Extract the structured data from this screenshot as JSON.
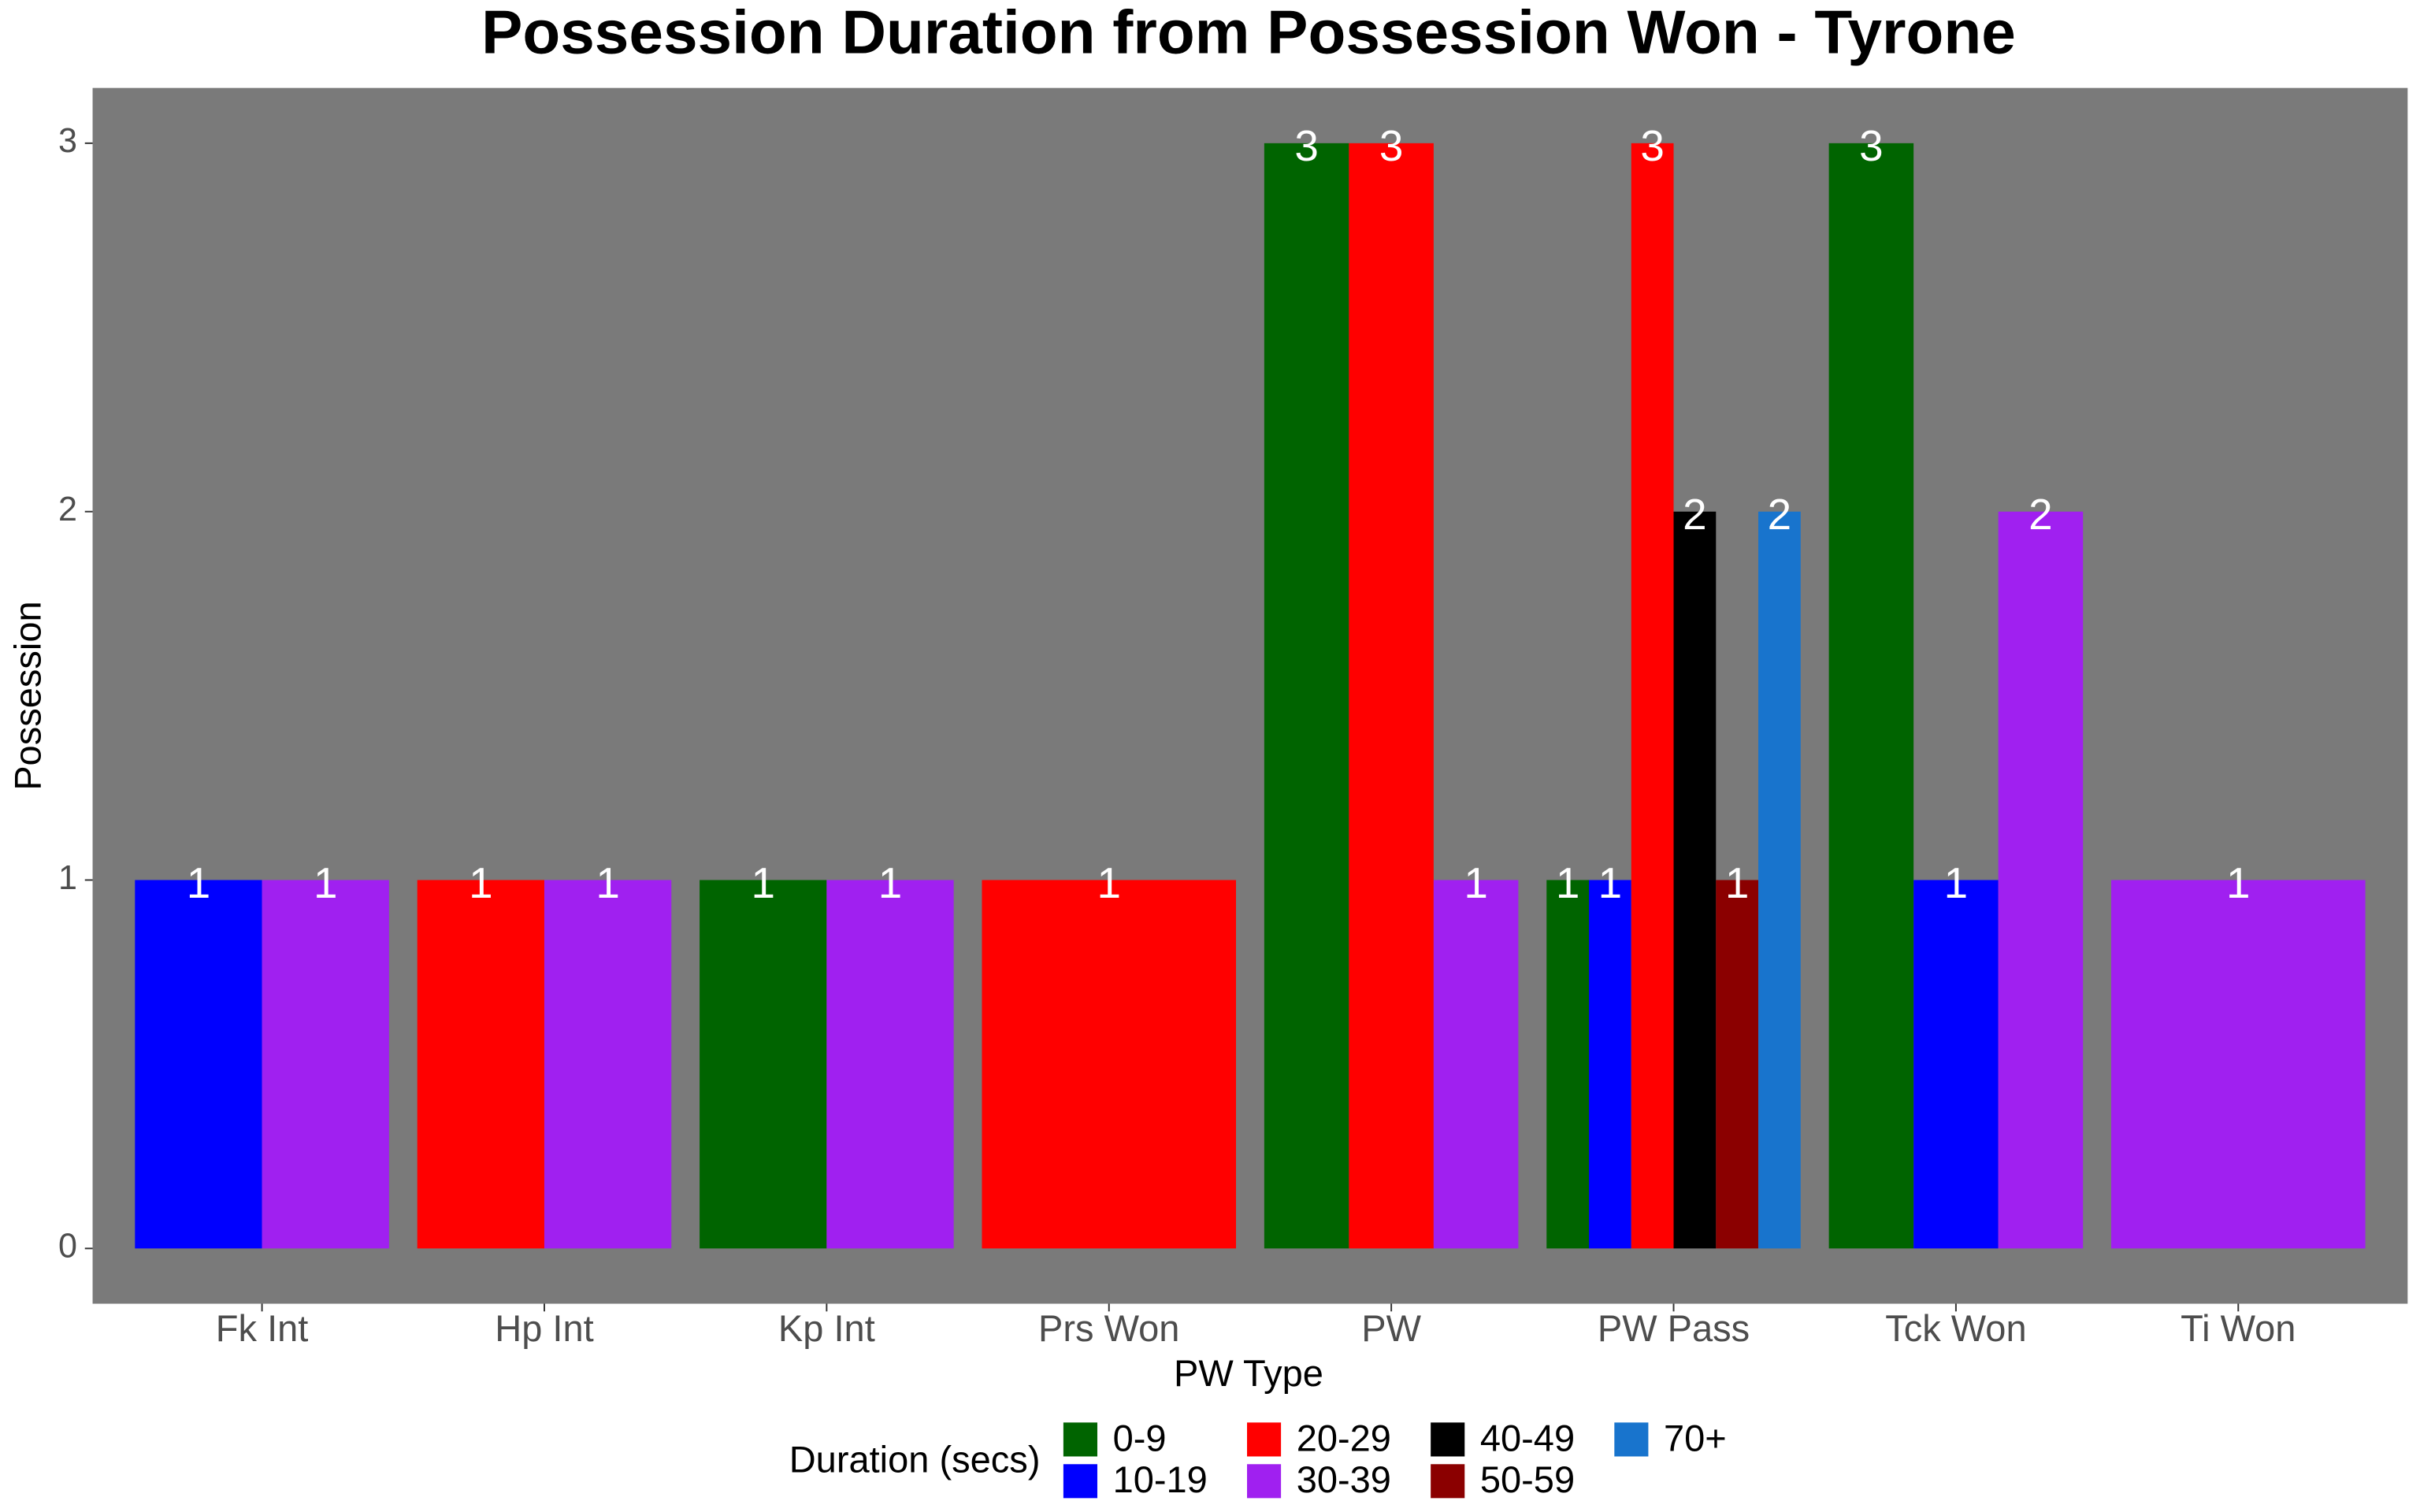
{
  "chart_data": {
    "type": "bar",
    "title": "Possession Duration from Possession Won - Tyrone",
    "x_label": "PW Type",
    "y_label": "Possession",
    "legend_title": "Duration (secs)",
    "legend_position": "bottom",
    "categories": [
      "Fk Int",
      "Hp Int",
      "Kp Int",
      "Prs Won",
      "PW",
      "PW Pass",
      "Tck Won",
      "Ti Won"
    ],
    "series": [
      {
        "name": "0-9",
        "color": "#006400",
        "values": [
          null,
          null,
          1,
          null,
          3,
          1,
          3,
          null
        ]
      },
      {
        "name": "10-19",
        "color": "#0000ff",
        "values": [
          1,
          null,
          null,
          null,
          null,
          1,
          1,
          null
        ]
      },
      {
        "name": "20-29",
        "color": "#ff0000",
        "values": [
          null,
          1,
          null,
          1,
          3,
          3,
          null,
          null
        ]
      },
      {
        "name": "30-39",
        "color": "#a020f0",
        "values": [
          1,
          1,
          1,
          null,
          1,
          null,
          2,
          1
        ]
      },
      {
        "name": "40-49",
        "color": "#000000",
        "values": [
          null,
          null,
          null,
          null,
          null,
          2,
          null,
          null
        ]
      },
      {
        "name": "50-59",
        "color": "#8b0000",
        "values": [
          null,
          null,
          null,
          null,
          null,
          1,
          null,
          null
        ]
      },
      {
        "name": "70+",
        "color": "#1874cd",
        "values": [
          null,
          null,
          null,
          null,
          null,
          2,
          null,
          null
        ]
      }
    ],
    "ylim": [
      -0.15,
      3.15
    ],
    "yticks": [
      0,
      1,
      2,
      3
    ],
    "panel_color": "#7a7a7a",
    "grid": false
  }
}
